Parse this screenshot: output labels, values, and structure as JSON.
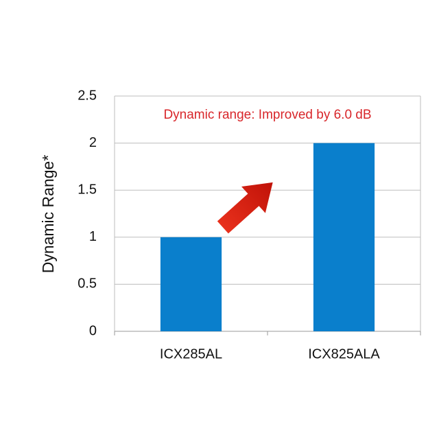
{
  "chart_data": {
    "type": "bar",
    "categories": [
      "ICX285AL",
      "ICX825ALA"
    ],
    "values": [
      1,
      2
    ],
    "color": "#0a7fcc",
    "y_label": "Dynamic Range*",
    "annotation": "Dynamic range: Improved by 6.0 dB",
    "annotation_color": "#d8262a",
    "ylim": [
      0,
      2.5
    ],
    "yticks": [
      0,
      0.5,
      1,
      1.5,
      2,
      2.5
    ],
    "grid": true
  }
}
